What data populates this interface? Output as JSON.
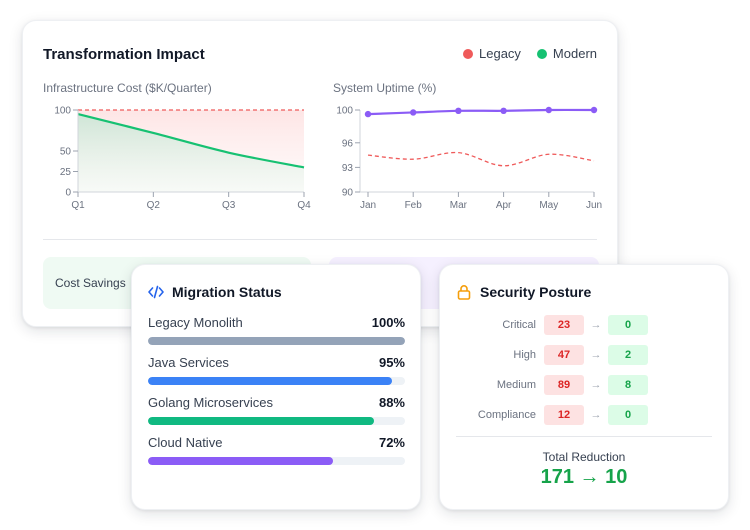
{
  "impact": {
    "title": "Transformation Impact",
    "legend": [
      {
        "label": "Legacy",
        "color": "#ef5a5a"
      },
      {
        "label": "Modern",
        "color": "#16c172"
      }
    ],
    "savings_label": "Cost Savings"
  },
  "chart_data": [
    {
      "type": "area",
      "title": "Infrastructure Cost ($K/Quarter)",
      "categories": [
        "Q1",
        "Q2",
        "Q3",
        "Q4"
      ],
      "y_ticks": [
        "100",
        "50",
        "25",
        "0"
      ],
      "ylim": [
        0,
        100
      ],
      "series": [
        {
          "name": "Legacy",
          "values": [
            100,
            100,
            100,
            100
          ],
          "color": "#ef5a5a",
          "style": "dashed"
        },
        {
          "name": "Modern",
          "values": [
            95,
            72,
            48,
            30
          ],
          "color": "#16c172",
          "style": "solid-area"
        }
      ]
    },
    {
      "type": "line",
      "title": "System Uptime (%)",
      "categories": [
        "Jan",
        "Feb",
        "Mar",
        "Apr",
        "May",
        "Jun"
      ],
      "y_ticks": [
        "100",
        "96",
        "93",
        "90"
      ],
      "ylim": [
        90,
        100
      ],
      "series": [
        {
          "name": "Legacy",
          "values": [
            94.5,
            94.0,
            94.8,
            93.2,
            94.6,
            93.8
          ],
          "color": "#ef5a5a",
          "style": "dashed"
        },
        {
          "name": "Modern",
          "values": [
            99.5,
            99.7,
            99.9,
            99.9,
            100.0,
            100.0
          ],
          "color": "#8b5cf6",
          "style": "solid-markers"
        }
      ]
    }
  ],
  "migration": {
    "title": "Migration Status",
    "items": [
      {
        "name": "Legacy Monolith",
        "pct": "100%",
        "value": 100,
        "color": "#94a3b8"
      },
      {
        "name": "Java Services",
        "pct": "95%",
        "value": 95,
        "color": "#3b82f6"
      },
      {
        "name": "Golang Microservices",
        "pct": "88%",
        "value": 88,
        "color": "#10b981"
      },
      {
        "name": "Cloud Native",
        "pct": "72%",
        "value": 72,
        "color": "#8b5cf6"
      }
    ]
  },
  "security": {
    "title": "Security Posture",
    "rows": [
      {
        "label": "Critical",
        "before": "23",
        "after": "0"
      },
      {
        "label": "High",
        "before": "47",
        "after": "2"
      },
      {
        "label": "Medium",
        "before": "89",
        "after": "8"
      },
      {
        "label": "Compliance",
        "before": "12",
        "after": "0"
      }
    ],
    "arrow": "→",
    "total_label": "Total Reduction",
    "total_value": "171 → 10"
  }
}
